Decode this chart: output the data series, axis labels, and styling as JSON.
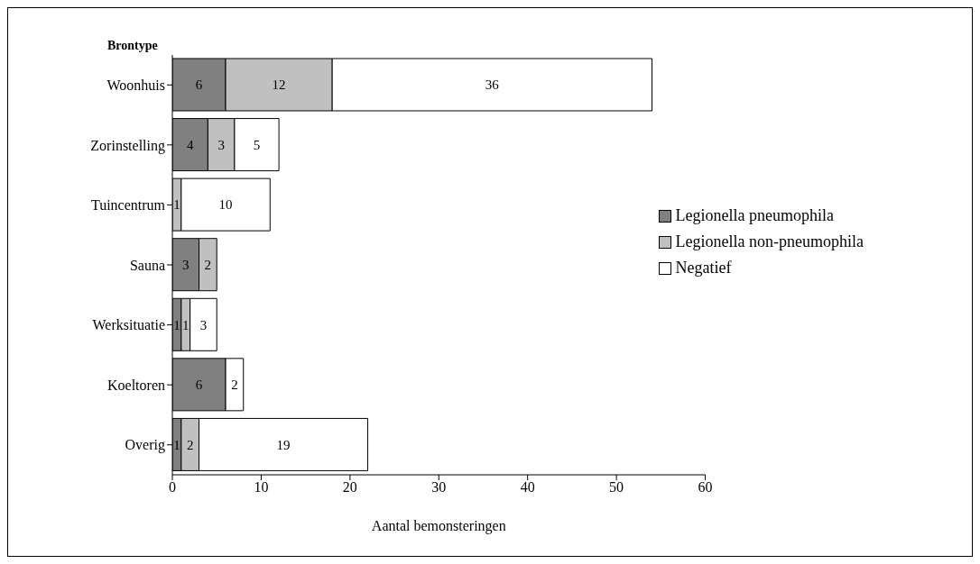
{
  "chart_data": {
    "type": "bar",
    "orientation": "horizontal",
    "stacked": true,
    "ylabel": "Brontype",
    "xlabel": "Aantal bemonsteringen",
    "categories": [
      "Woonhuis",
      "Zorinstelling",
      "Tuincentrum",
      "Sauna",
      "Werksituatie",
      "Koeltoren",
      "Overig"
    ],
    "series": [
      {
        "name": "Legionella pneumophila",
        "color": "#808080",
        "values": [
          6,
          4,
          null,
          3,
          1,
          6,
          1
        ]
      },
      {
        "name": "Legionella non-pneumophila",
        "color": "#c0c0c0",
        "values": [
          12,
          3,
          1,
          2,
          1,
          null,
          2
        ]
      },
      {
        "name": "Negatief",
        "color": "#ffffff",
        "values": [
          36,
          5,
          10,
          null,
          3,
          2,
          19
        ]
      }
    ],
    "xlim": [
      0,
      60
    ],
    "xticks": [
      0,
      10,
      20,
      30,
      40,
      50,
      60
    ],
    "legend": "right",
    "data_labels": true
  }
}
